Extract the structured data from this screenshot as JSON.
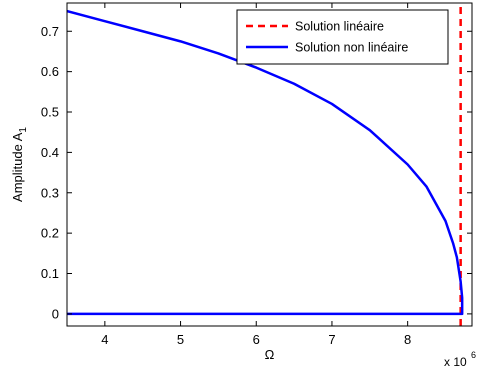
{
  "chart_data": {
    "type": "line",
    "xlabel": "Ω",
    "ylabel": "Amplitude A",
    "ylabel_subscript": "1",
    "x_exponent_base": "x 10",
    "x_exponent_power": "6",
    "xlim": [
      3.5,
      8.85
    ],
    "ylim": [
      -0.03,
      0.77
    ],
    "x_ticks": [
      4,
      5,
      6,
      7,
      8
    ],
    "x_tick_labels": [
      "4",
      "5",
      "6",
      "7",
      "8"
    ],
    "y_ticks": [
      0,
      0.1,
      0.2,
      0.3,
      0.4,
      0.5,
      0.6,
      0.7
    ],
    "y_tick_labels": [
      "0",
      "0.1",
      "0.2",
      "0.3",
      "0.4",
      "0.5",
      "0.6",
      "0.7"
    ],
    "legend_position": "top-right",
    "grid": false,
    "series": [
      {
        "name": "Solution linéaire",
        "color": "#ff0000",
        "style": "dashed",
        "x": [
          8.7,
          8.7
        ],
        "y": [
          -0.03,
          0.77
        ]
      },
      {
        "name": "Solution non linéaire",
        "color": "#0000ff",
        "style": "solid",
        "x": [
          3.5,
          4.0,
          4.5,
          5.0,
          5.5,
          6.0,
          6.5,
          7.0,
          7.5,
          8.0,
          8.25,
          8.5,
          8.6,
          8.65,
          8.7,
          8.72,
          8.72,
          8.5,
          8.0,
          7.0,
          6.0,
          5.0,
          4.0,
          3.5
        ],
        "y": [
          0.75,
          0.725,
          0.7,
          0.675,
          0.645,
          0.61,
          0.57,
          0.52,
          0.455,
          0.37,
          0.315,
          0.23,
          0.175,
          0.14,
          0.08,
          0.04,
          0.0,
          0.0,
          0.0,
          0.0,
          0.0,
          0.0,
          0.0,
          0.0
        ]
      }
    ]
  }
}
